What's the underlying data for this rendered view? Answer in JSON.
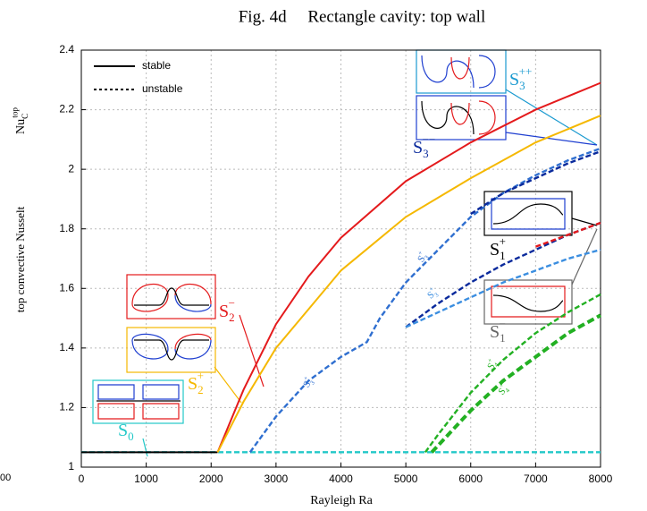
{
  "chart_data": {
    "type": "line",
    "title": "Fig. 4d     Rectangle cavity: top wall",
    "x_label": "Rayleigh Ra",
    "y_label": "top convective Nusselt",
    "y_label_symbol": {
      "text": "Nu",
      "sub": "C",
      "sup": "top"
    },
    "edge_label": "00",
    "xlim": [
      0,
      8000
    ],
    "ylim": [
      1,
      2.4
    ],
    "xticks": [
      0,
      1000,
      2000,
      3000,
      4000,
      5000,
      6000,
      7000,
      8000
    ],
    "yticks": [
      1,
      1.2,
      1.4,
      1.6,
      1.8,
      2,
      2.2,
      2.4
    ],
    "grid": true,
    "legend_position": "upper left",
    "legend": [
      {
        "label": "stable",
        "style": "solid"
      },
      {
        "label": "unstable",
        "style": "dashed"
      }
    ],
    "series": [
      {
        "color": "#22c8c8",
        "style": "dashed",
        "x": [
          0,
          8000
        ],
        "values": [
          1.05,
          1.05
        ]
      },
      {
        "color": "#000000",
        "style": "solid",
        "x": [
          0,
          2100
        ],
        "values": [
          1.05,
          1.05
        ]
      },
      {
        "color": "#e41a1c",
        "style": "solid",
        "x": [
          2100,
          2500,
          3000,
          3500,
          4000,
          5000,
          6000,
          7000,
          8000
        ],
        "values": [
          1.05,
          1.26,
          1.48,
          1.64,
          1.77,
          1.96,
          2.09,
          2.2,
          2.29
        ]
      },
      {
        "color": "#f5b800",
        "style": "solid",
        "x": [
          2100,
          2500,
          3000,
          3500,
          4000,
          5000,
          6000,
          7000,
          8000
        ],
        "values": [
          1.05,
          1.22,
          1.4,
          1.53,
          1.66,
          1.84,
          1.97,
          2.09,
          2.18
        ]
      },
      {
        "color": "#2f6fd0",
        "style": "dashed",
        "x": [
          2600,
          3000,
          3500,
          4000,
          4400,
          4600,
          5000,
          5500,
          6000,
          6500,
          7000,
          7500,
          8000
        ],
        "values": [
          1.05,
          1.17,
          1.29,
          1.37,
          1.42,
          1.5,
          1.62,
          1.73,
          1.84,
          1.92,
          1.98,
          2.03,
          2.07
        ]
      },
      {
        "color": "#0a2a9c",
        "style": "dashed",
        "x": [
          6000,
          6500,
          7000,
          7500,
          8000
        ],
        "values": [
          1.85,
          1.92,
          1.97,
          2.02,
          2.06
        ]
      },
      {
        "color": "#0a2a9c",
        "style": "dashed",
        "x": [
          5000,
          5500,
          6000,
          6500,
          7000,
          7500,
          8000
        ],
        "values": [
          1.47,
          1.55,
          1.62,
          1.68,
          1.73,
          1.78,
          1.82
        ]
      },
      {
        "color": "#3b8ee0",
        "style": "dashed",
        "x": [
          5000,
          5500,
          6000,
          6500,
          7000,
          7500,
          8000
        ],
        "values": [
          1.47,
          1.52,
          1.57,
          1.62,
          1.66,
          1.7,
          1.73
        ]
      },
      {
        "color": "#e41a1c",
        "style": "dashed",
        "x": [
          7000,
          7500,
          8000
        ],
        "values": [
          1.74,
          1.78,
          1.82
        ]
      },
      {
        "color": "#22b022",
        "style": "dashed",
        "x": [
          5300,
          5500,
          6000,
          6500,
          7000,
          7500,
          8000
        ],
        "values": [
          1.05,
          1.11,
          1.25,
          1.36,
          1.45,
          1.52,
          1.58
        ]
      },
      {
        "color": "#22b022",
        "style": "dashed-thick",
        "x": [
          5400,
          6000,
          6500,
          7000,
          7500,
          8000
        ],
        "values": [
          1.05,
          1.19,
          1.29,
          1.37,
          1.45,
          1.51
        ]
      }
    ],
    "annotations": [
      {
        "text": "S",
        "sub": "2",
        "sup": "−",
        "color": "#e41a1c"
      },
      {
        "text": "S",
        "sub": "2",
        "sup": "+",
        "color": "#f5b800"
      },
      {
        "text": "S",
        "sub": "0",
        "color": "#22c8c8"
      },
      {
        "text": "S",
        "sub": "3",
        "sup": "++",
        "color": "#1a9ad0"
      },
      {
        "text": "S",
        "sub": "3",
        "sup": "−−",
        "color": "#0a2a9c"
      },
      {
        "text": "S",
        "sub": "1",
        "sup": "+",
        "color": "#000000"
      },
      {
        "text": "S",
        "sub": "1",
        "sup": "−",
        "color": "#666666"
      },
      {
        "text": "S",
        "sub": "3",
        "sup": "+",
        "color": "#2f6fd0"
      },
      {
        "text": "S",
        "sub": "3",
        "sup": "+",
        "color": "#2f6fd0"
      },
      {
        "text": "S",
        "sub": "3",
        "sup": "+",
        "color": "#3b8ee0"
      },
      {
        "text": "S",
        "sub": "4",
        "sup": "+",
        "color": "#22b022"
      },
      {
        "text": "S",
        "sub": "4",
        "sup": "+",
        "color": "#22b022"
      }
    ]
  }
}
